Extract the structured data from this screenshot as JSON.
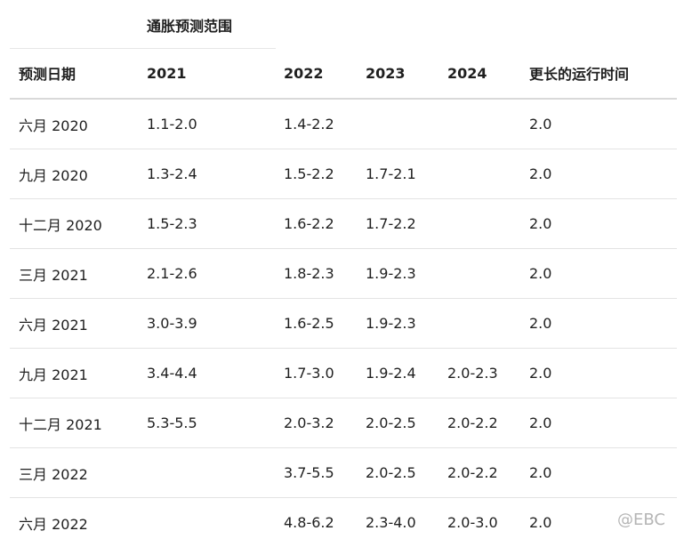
{
  "super_header": "通胀预测范围",
  "columns": [
    "预测日期",
    "2021",
    "2022",
    "2023",
    "2024",
    "更长的运行时间"
  ],
  "rows": [
    [
      "六月 2020",
      "1.1-2.0",
      "1.4-2.2",
      "",
      "",
      "2.0"
    ],
    [
      "九月 2020",
      "1.3-2.4",
      "1.5-2.2",
      "1.7-2.1",
      "",
      "2.0"
    ],
    [
      "十二月 2020",
      "1.5-2.3",
      "1.6-2.2",
      "1.7-2.2",
      "",
      "2.0"
    ],
    [
      "三月 2021",
      "2.1-2.6",
      "1.8-2.3",
      "1.9-2.3",
      "",
      "2.0"
    ],
    [
      "六月 2021",
      "3.0-3.9",
      "1.6-2.5",
      "1.9-2.3",
      "",
      "2.0"
    ],
    [
      "九月 2021",
      "3.4-4.4",
      "1.7-3.0",
      "1.9-2.4",
      "2.0-2.3",
      "2.0"
    ],
    [
      "十二月 2021",
      "5.3-5.5",
      "2.0-3.2",
      "2.0-2.5",
      "2.0-2.2",
      "2.0"
    ],
    [
      "三月 2022",
      "",
      "3.7-5.5",
      "2.0-2.5",
      "2.0-2.2",
      "2.0"
    ],
    [
      "六月 2022",
      "",
      "4.8-6.2",
      "2.3-4.0",
      "2.0-3.0",
      "2.0"
    ]
  ],
  "watermark": "@EBC"
}
